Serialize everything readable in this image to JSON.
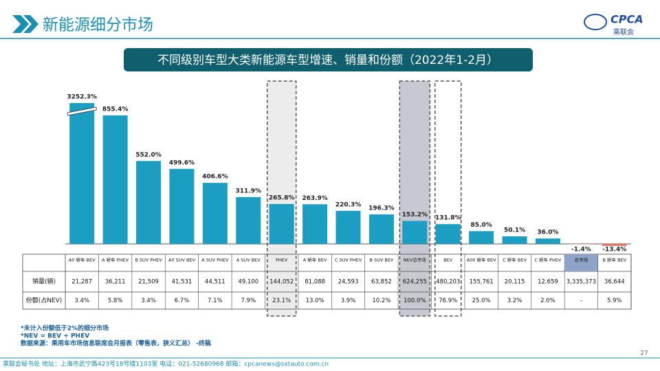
{
  "header": {
    "title": "新能源细分市场",
    "logo": "CPCA",
    "logo_sub": "乘联会"
  },
  "chart_data": {
    "type": "bar",
    "title": "不同级别车型大类新能源车型增速、销量和份额（2022年1-2月）",
    "categories": [
      "A0 轿车 BEV",
      "A 轿车 PHEV",
      "B SUV PHEV",
      "A0 SUV BEV",
      "A SUV PHEV",
      "A SUV BEV",
      "PHEV",
      "A 轿车 BEV",
      "C SUV PHEV",
      "B SUV BEV",
      "NEV总市场",
      "BEV",
      "A00 轿车 BEV",
      "C 轿车 BEV",
      "C 轿车 PHEV",
      "总市场",
      "B 轿车 BEV"
    ],
    "values": [
      3252.3,
      855.4,
      552.0,
      499.6,
      406.6,
      311.9,
      265.8,
      263.9,
      220.3,
      196.3,
      153.2,
      131.8,
      85.0,
      50.1,
      36.0,
      -1.4,
      -13.4
    ],
    "value_labels": [
      "3252.3%",
      "855.4%",
      "552.0%",
      "499.6%",
      "406.6%",
      "311.9%",
      "265.8%",
      "263.9%",
      "220.3%",
      "196.3%",
      "153.2%",
      "131.8%",
      "85.0%",
      "50.1%",
      "36.0%",
      "-1.4%",
      "-13.4%"
    ],
    "color": "#1b9ec2",
    "negative_color": "#e8735f"
  },
  "table": {
    "row_labels": [
      "销量(辆)",
      "份额(占NEV)"
    ],
    "rows": [
      [
        "21,287",
        "36,211",
        "21,509",
        "41,531",
        "44,511",
        "49,100",
        "144,052",
        "81,088",
        "24,593",
        "63,852",
        "624,255",
        "480,203",
        "155,761",
        "20,115",
        "12,659",
        "3,335,373",
        "36,644"
      ],
      [
        "3.4%",
        "5.8%",
        "3.4%",
        "6.7%",
        "7.1%",
        "7.9%",
        "23.1%",
        "13.0%",
        "3.9%",
        "10.2%",
        "100.0%",
        "76.9%",
        "25.0%",
        "3.2%",
        "2.0%",
        "-",
        "5.9%"
      ]
    ]
  },
  "notes": [
    "*未计入份额低于2%的细分市场",
    "*NEV = BEV + PHEV",
    "数据来源：乘用车市场信息联席会月报表（零售表，狭义汇总） -终稿"
  ],
  "footer": {
    "text": "乘联会秘书处   地址：上海市武宁路423号18号楼1103室   电话：021-52680968   邮箱：cpcanews@sxtauto.com.cn",
    "page": "27"
  }
}
